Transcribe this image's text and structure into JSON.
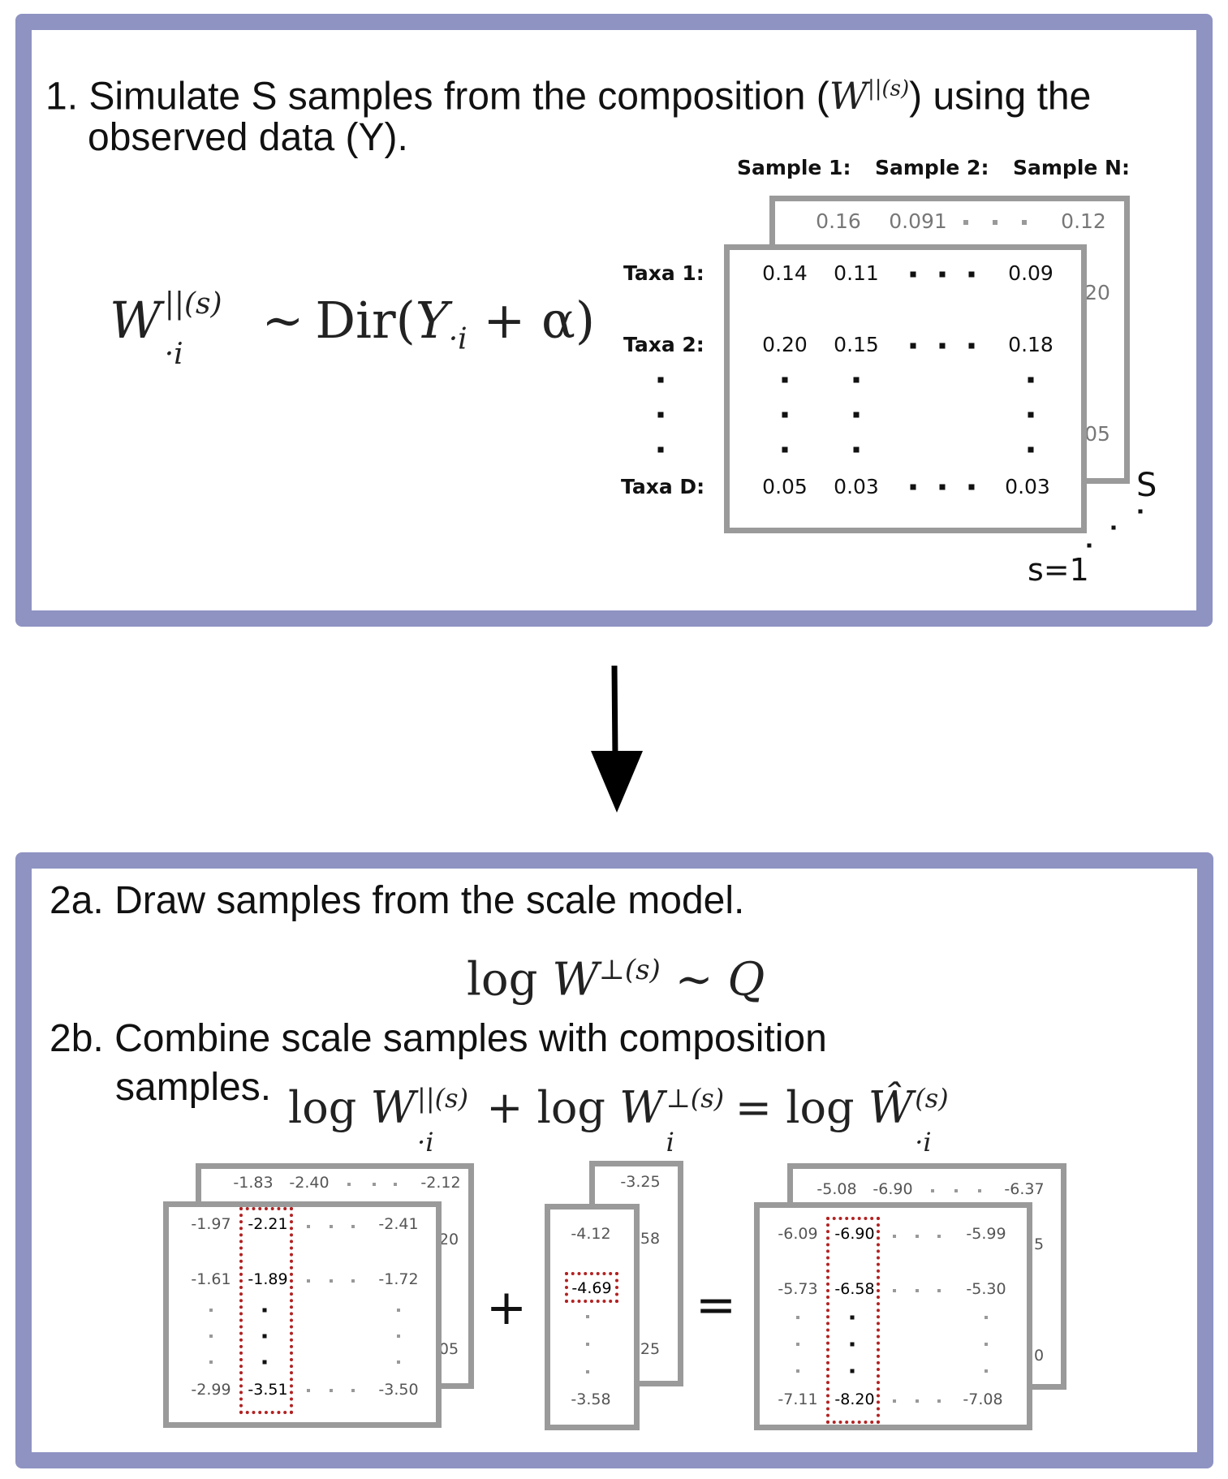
{
  "step1": {
    "line1_a": "1. Simulate S samples from the  composition (",
    "line1_b": ")  using the",
    "line2": "observed data (Y).",
    "inline_math": "W",
    "inline_sup": "||(s)",
    "equation": {
      "lhs_var": "W",
      "lhs_sub": "·i",
      "lhs_sup": "||(s)",
      "rel": "∼",
      "rhs": "Dir(",
      "rhs_var": "Y",
      "rhs_sub": "·i",
      "rhs_rest": " + α)"
    },
    "sample_headers": [
      "Sample 1:",
      "Sample 2:",
      "Sample N:"
    ],
    "row_labels": [
      "Taxa 1:",
      "Taxa 2:",
      "Taxa D:"
    ],
    "back_row": [
      "0.16",
      "0.091",
      "0.12"
    ],
    "back_edge": [
      "20",
      "05"
    ],
    "front_rows": [
      [
        "0.14",
        "0.11",
        "0.09"
      ],
      [
        "0.20",
        "0.15",
        "0.18"
      ],
      [
        "0.05",
        "0.03",
        "0.03"
      ]
    ],
    "stack_top_label": "S",
    "stack_bottom_label": "s=1"
  },
  "step2": {
    "line_a": "2a. Draw samples from the scale model.",
    "eq_a": {
      "log": "log ",
      "var": "W",
      "sup": "⊥(s)",
      "rel": " ∼ ",
      "rhs": "Q"
    },
    "line_b1": "2b. Combine scale samples with composition",
    "line_b2": "samples.",
    "eq_b": {
      "t1_log": "log ",
      "t1_var": "W",
      "t1_sub": "·i",
      "t1_sup": "||(s)",
      "plus": " + ",
      "t2_log": "log ",
      "t2_var": "W",
      "t2_sub": "i",
      "t2_sup": "⊥(s)",
      "eq": " = ",
      "t3_log": "log ",
      "t3_var": "Ŵ",
      "t3_sub": "·i",
      "t3_sup": "(s)"
    },
    "left_matrix": {
      "back_row": [
        "-1.83",
        "-2.40",
        "-2.12"
      ],
      "back_edge": [
        "20",
        "05"
      ],
      "rows": [
        [
          "-1.97",
          "-2.21",
          "-2.41"
        ],
        [
          "-1.61",
          "-1.89",
          "-1.72"
        ],
        [
          "-2.99",
          "-3.51",
          "-3.50"
        ]
      ]
    },
    "middle_vector": {
      "back_top": "-3.25",
      "back_edge": [
        "58",
        "25"
      ],
      "rows": [
        "-4.12",
        "-4.69",
        "-3.58"
      ]
    },
    "right_matrix": {
      "back_row": [
        "-5.08",
        "-6.90",
        "-6.37"
      ],
      "back_edge": [
        "5",
        "0"
      ],
      "rows": [
        [
          "-6.09",
          "-6.90",
          "-5.99"
        ],
        [
          "-5.73",
          "-6.58",
          "-5.30"
        ],
        [
          "-7.11",
          "-8.20",
          "-7.08"
        ]
      ]
    },
    "plus_sign": "+",
    "equals_sign": "="
  }
}
